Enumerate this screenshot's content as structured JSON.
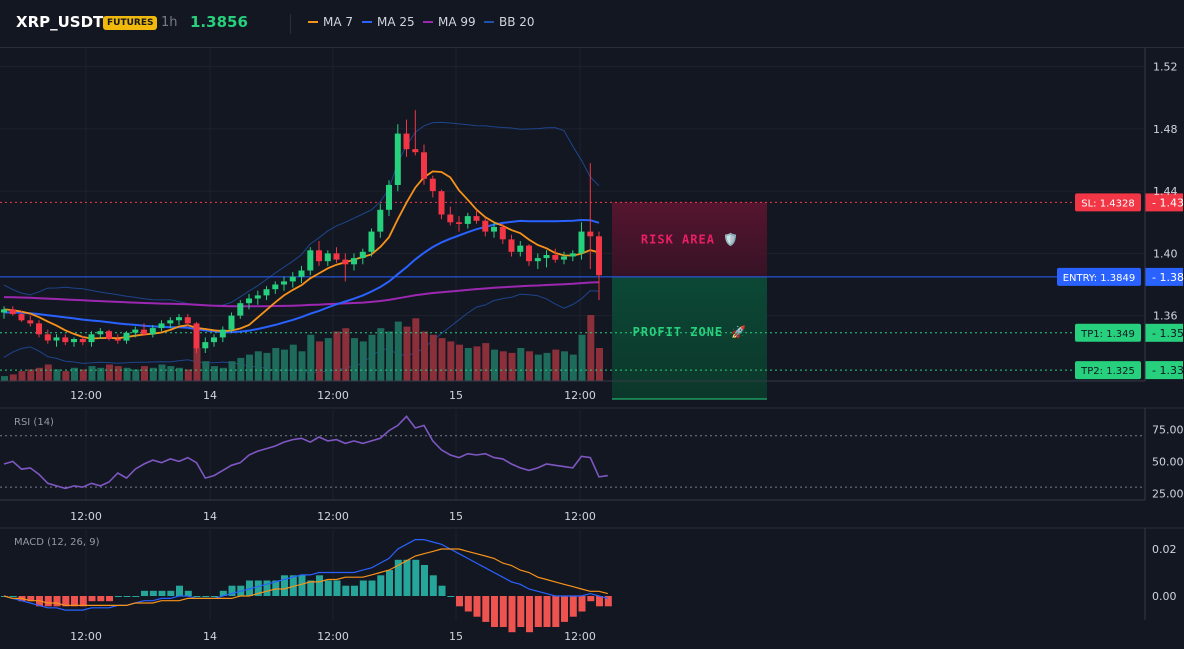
{
  "header": {
    "symbol": "XRP_USDT",
    "badge": "FUTURES",
    "timeframe": "1h",
    "price": "1.3856",
    "legend": [
      {
        "label": "MA 7",
        "color": "#f7931a"
      },
      {
        "label": "MA 25",
        "color": "#2962ff"
      },
      {
        "label": "MA 99",
        "color": "#9c27b0"
      },
      {
        "label": "BB 20",
        "color": "#2150a8"
      }
    ]
  },
  "chart_data": [
    {
      "type": "candlestick",
      "title": "XRP_USDT 1h",
      "x_tick_labels": [
        "12:00",
        "14",
        "12:00",
        "15",
        "12:00"
      ],
      "y_tick_labels": [
        "1.52",
        "1.48",
        "1.44",
        "1.40",
        "1.36"
      ],
      "ylim": [
        1.318,
        1.532
      ],
      "grid": true,
      "candles": [
        {
          "o": 1.362,
          "h": 1.366,
          "l": 1.358,
          "c": 1.364
        },
        {
          "o": 1.364,
          "h": 1.366,
          "l": 1.36,
          "c": 1.361
        },
        {
          "o": 1.361,
          "h": 1.363,
          "l": 1.356,
          "c": 1.357
        },
        {
          "o": 1.357,
          "h": 1.36,
          "l": 1.353,
          "c": 1.355
        },
        {
          "o": 1.355,
          "h": 1.357,
          "l": 1.346,
          "c": 1.348
        },
        {
          "o": 1.348,
          "h": 1.351,
          "l": 1.342,
          "c": 1.344
        },
        {
          "o": 1.344,
          "h": 1.348,
          "l": 1.34,
          "c": 1.346
        },
        {
          "o": 1.346,
          "h": 1.348,
          "l": 1.341,
          "c": 1.343
        },
        {
          "o": 1.343,
          "h": 1.346,
          "l": 1.34,
          "c": 1.345
        },
        {
          "o": 1.345,
          "h": 1.347,
          "l": 1.341,
          "c": 1.343
        },
        {
          "o": 1.343,
          "h": 1.35,
          "l": 1.34,
          "c": 1.348
        },
        {
          "o": 1.348,
          "h": 1.352,
          "l": 1.345,
          "c": 1.35
        },
        {
          "o": 1.35,
          "h": 1.351,
          "l": 1.344,
          "c": 1.345
        },
        {
          "o": 1.345,
          "h": 1.348,
          "l": 1.342,
          "c": 1.344
        },
        {
          "o": 1.344,
          "h": 1.35,
          "l": 1.342,
          "c": 1.349
        },
        {
          "o": 1.349,
          "h": 1.353,
          "l": 1.346,
          "c": 1.351
        },
        {
          "o": 1.351,
          "h": 1.355,
          "l": 1.347,
          "c": 1.348
        },
        {
          "o": 1.348,
          "h": 1.354,
          "l": 1.346,
          "c": 1.352
        },
        {
          "o": 1.352,
          "h": 1.357,
          "l": 1.35,
          "c": 1.355
        },
        {
          "o": 1.355,
          "h": 1.359,
          "l": 1.352,
          "c": 1.357
        },
        {
          "o": 1.357,
          "h": 1.361,
          "l": 1.354,
          "c": 1.359
        },
        {
          "o": 1.359,
          "h": 1.361,
          "l": 1.353,
          "c": 1.355
        },
        {
          "o": 1.355,
          "h": 1.356,
          "l": 1.336,
          "c": 1.339
        },
        {
          "o": 1.339,
          "h": 1.346,
          "l": 1.336,
          "c": 1.343
        },
        {
          "o": 1.343,
          "h": 1.348,
          "l": 1.34,
          "c": 1.346
        },
        {
          "o": 1.346,
          "h": 1.353,
          "l": 1.343,
          "c": 1.351
        },
        {
          "o": 1.351,
          "h": 1.362,
          "l": 1.349,
          "c": 1.36
        },
        {
          "o": 1.36,
          "h": 1.37,
          "l": 1.358,
          "c": 1.368
        },
        {
          "o": 1.368,
          "h": 1.374,
          "l": 1.364,
          "c": 1.371
        },
        {
          "o": 1.371,
          "h": 1.376,
          "l": 1.367,
          "c": 1.373
        },
        {
          "o": 1.373,
          "h": 1.379,
          "l": 1.37,
          "c": 1.377
        },
        {
          "o": 1.377,
          "h": 1.382,
          "l": 1.374,
          "c": 1.38
        },
        {
          "o": 1.38,
          "h": 1.385,
          "l": 1.376,
          "c": 1.382
        },
        {
          "o": 1.382,
          "h": 1.388,
          "l": 1.378,
          "c": 1.385
        },
        {
          "o": 1.385,
          "h": 1.392,
          "l": 1.381,
          "c": 1.389
        },
        {
          "o": 1.389,
          "h": 1.404,
          "l": 1.386,
          "c": 1.402
        },
        {
          "o": 1.402,
          "h": 1.408,
          "l": 1.392,
          "c": 1.395
        },
        {
          "o": 1.395,
          "h": 1.402,
          "l": 1.392,
          "c": 1.4
        },
        {
          "o": 1.4,
          "h": 1.404,
          "l": 1.394,
          "c": 1.396
        },
        {
          "o": 1.396,
          "h": 1.4,
          "l": 1.382,
          "c": 1.393
        },
        {
          "o": 1.393,
          "h": 1.4,
          "l": 1.389,
          "c": 1.397
        },
        {
          "o": 1.397,
          "h": 1.403,
          "l": 1.393,
          "c": 1.401
        },
        {
          "o": 1.401,
          "h": 1.416,
          "l": 1.398,
          "c": 1.414
        },
        {
          "o": 1.414,
          "h": 1.432,
          "l": 1.41,
          "c": 1.428
        },
        {
          "o": 1.428,
          "h": 1.447,
          "l": 1.424,
          "c": 1.444
        },
        {
          "o": 1.444,
          "h": 1.483,
          "l": 1.44,
          "c": 1.477
        },
        {
          "o": 1.477,
          "h": 1.486,
          "l": 1.462,
          "c": 1.467
        },
        {
          "o": 1.467,
          "h": 1.492,
          "l": 1.463,
          "c": 1.465
        },
        {
          "o": 1.465,
          "h": 1.47,
          "l": 1.444,
          "c": 1.448
        },
        {
          "o": 1.448,
          "h": 1.45,
          "l": 1.436,
          "c": 1.44
        },
        {
          "o": 1.44,
          "h": 1.441,
          "l": 1.422,
          "c": 1.425
        },
        {
          "o": 1.425,
          "h": 1.43,
          "l": 1.418,
          "c": 1.42
        },
        {
          "o": 1.42,
          "h": 1.424,
          "l": 1.414,
          "c": 1.419
        },
        {
          "o": 1.419,
          "h": 1.426,
          "l": 1.416,
          "c": 1.424
        },
        {
          "o": 1.424,
          "h": 1.428,
          "l": 1.419,
          "c": 1.421
        },
        {
          "o": 1.421,
          "h": 1.423,
          "l": 1.411,
          "c": 1.414
        },
        {
          "o": 1.414,
          "h": 1.42,
          "l": 1.41,
          "c": 1.417
        },
        {
          "o": 1.417,
          "h": 1.419,
          "l": 1.406,
          "c": 1.409
        },
        {
          "o": 1.409,
          "h": 1.412,
          "l": 1.398,
          "c": 1.401
        },
        {
          "o": 1.401,
          "h": 1.408,
          "l": 1.398,
          "c": 1.405
        },
        {
          "o": 1.405,
          "h": 1.406,
          "l": 1.392,
          "c": 1.395
        },
        {
          "o": 1.395,
          "h": 1.4,
          "l": 1.39,
          "c": 1.397
        },
        {
          "o": 1.397,
          "h": 1.402,
          "l": 1.391,
          "c": 1.399
        },
        {
          "o": 1.399,
          "h": 1.403,
          "l": 1.394,
          "c": 1.396
        },
        {
          "o": 1.396,
          "h": 1.401,
          "l": 1.393,
          "c": 1.398
        },
        {
          "o": 1.398,
          "h": 1.402,
          "l": 1.395,
          "c": 1.4
        },
        {
          "o": 1.4,
          "h": 1.42,
          "l": 1.396,
          "c": 1.414
        },
        {
          "o": 1.414,
          "h": 1.458,
          "l": 1.39,
          "c": 1.411
        },
        {
          "o": 1.411,
          "h": 1.414,
          "l": 1.37,
          "c": 1.386
        }
      ],
      "levels": [
        {
          "name": "SL",
          "value": 1.4328,
          "label": "SL: 1.4328",
          "axis_label": "1.43",
          "color": "#f23645"
        },
        {
          "name": "ENTRY",
          "value": 1.3849,
          "label": "ENTRY: 1.3849",
          "axis_label": "1.38",
          "color": "#2962ff"
        },
        {
          "name": "TP1",
          "value": 1.349,
          "label": "TP1: 1.349",
          "axis_label": "1.35",
          "color": "#26d07c"
        },
        {
          "name": "TP2",
          "value": 1.325,
          "label": "TP2: 1.325",
          "axis_label": "1.33",
          "color": "#26d07c"
        }
      ],
      "zones": [
        {
          "name": "risk",
          "label": "RISK AREA 🛡️",
          "from": 1.3849,
          "to": 1.4328,
          "color": "#e91e63"
        },
        {
          "name": "profit",
          "label": "PROFIT ZONE 🚀",
          "from": 1.3849,
          "to": 1.318,
          "color": "#26d07c"
        }
      ]
    },
    {
      "type": "line",
      "title": "RSI (14)",
      "ylim": [
        20,
        90
      ],
      "y_tick_labels": [
        "75.00",
        "50.00",
        "25.00"
      ],
      "bands": [
        70,
        30
      ],
      "values": [
        48,
        50,
        44,
        45,
        40,
        33,
        31,
        29,
        31,
        30,
        33,
        31,
        34,
        41,
        37,
        44,
        48,
        51,
        49,
        52,
        50,
        53,
        49,
        37,
        39,
        43,
        47,
        49,
        55,
        58,
        60,
        62,
        65,
        67,
        68,
        65,
        69,
        66,
        67,
        64,
        66,
        64,
        66,
        68,
        74,
        78,
        85,
        76,
        78,
        66,
        59,
        55,
        53,
        56,
        55,
        56,
        53,
        52,
        48,
        45,
        43,
        45,
        48,
        47,
        46,
        45,
        54,
        53,
        38,
        39
      ],
      "x_tick_labels": [
        "12:00",
        "14",
        "12:00",
        "15",
        "12:00"
      ]
    },
    {
      "type": "macd",
      "title": "MACD (12, 26, 9)",
      "y_tick_labels": [
        "0.02",
        "0.00"
      ],
      "ylim": [
        -0.01,
        0.025
      ],
      "macd": [
        0.0,
        -0.001,
        -0.002,
        -0.003,
        -0.004,
        -0.005,
        -0.005,
        -0.006,
        -0.006,
        -0.006,
        -0.005,
        -0.005,
        -0.005,
        -0.004,
        -0.004,
        -0.003,
        -0.002,
        -0.002,
        -0.001,
        -0.001,
        0.0,
        0.0,
        -0.001,
        -0.001,
        -0.001,
        0.0,
        0.001,
        0.002,
        0.003,
        0.004,
        0.005,
        0.006,
        0.007,
        0.008,
        0.009,
        0.009,
        0.01,
        0.01,
        0.01,
        0.01,
        0.01,
        0.011,
        0.012,
        0.014,
        0.016,
        0.02,
        0.022,
        0.024,
        0.024,
        0.023,
        0.022,
        0.02,
        0.018,
        0.016,
        0.014,
        0.012,
        0.01,
        0.008,
        0.006,
        0.005,
        0.003,
        0.002,
        0.001,
        0.0,
        0.0,
        0.0,
        0.0,
        0.001,
        0.0,
        -0.001
      ],
      "signal": [
        0.0,
        -0.001,
        -0.001,
        -0.002,
        -0.002,
        -0.003,
        -0.003,
        -0.004,
        -0.004,
        -0.004,
        -0.004,
        -0.004,
        -0.004,
        -0.004,
        -0.004,
        -0.003,
        -0.003,
        -0.003,
        -0.002,
        -0.002,
        -0.002,
        -0.001,
        -0.001,
        -0.001,
        -0.001,
        -0.001,
        -0.001,
        0.0,
        0.0,
        0.001,
        0.002,
        0.003,
        0.003,
        0.004,
        0.005,
        0.006,
        0.006,
        0.007,
        0.007,
        0.008,
        0.008,
        0.008,
        0.009,
        0.01,
        0.011,
        0.013,
        0.015,
        0.017,
        0.018,
        0.019,
        0.02,
        0.02,
        0.02,
        0.019,
        0.018,
        0.017,
        0.016,
        0.014,
        0.013,
        0.011,
        0.01,
        0.008,
        0.007,
        0.006,
        0.005,
        0.004,
        0.003,
        0.002,
        0.002,
        0.001
      ],
      "x_tick_labels": [
        "12:00",
        "14",
        "12:00",
        "15",
        "12:00"
      ]
    }
  ]
}
